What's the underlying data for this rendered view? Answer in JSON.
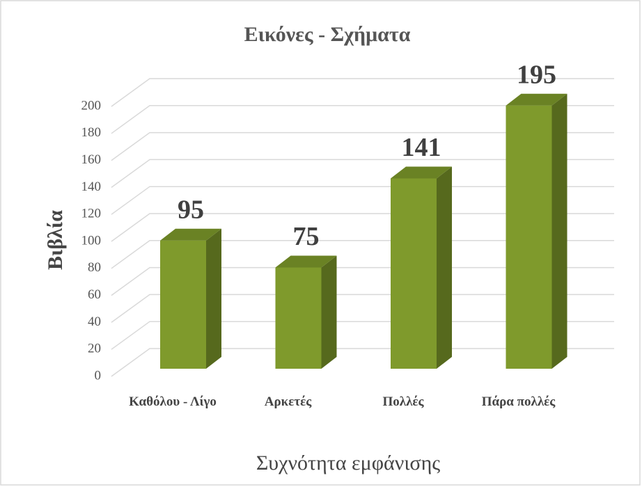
{
  "chart_data": {
    "type": "bar3d",
    "title": "Εικόνες - Σχήματα",
    "x_label": "Συχνότητα εμφάνισης",
    "y_label": "Βιβλία",
    "categories": [
      "Καθόλου - Λίγο",
      "Αρκετές",
      "Πολλές",
      "Πάρα πολλές"
    ],
    "values": [
      95,
      75,
      141,
      195
    ],
    "color": "#7f9a2c",
    "ylim": [
      0,
      200
    ],
    "yticks": [
      0,
      20,
      40,
      60,
      80,
      100,
      120,
      140,
      160,
      180,
      200
    ],
    "grid": true
  }
}
